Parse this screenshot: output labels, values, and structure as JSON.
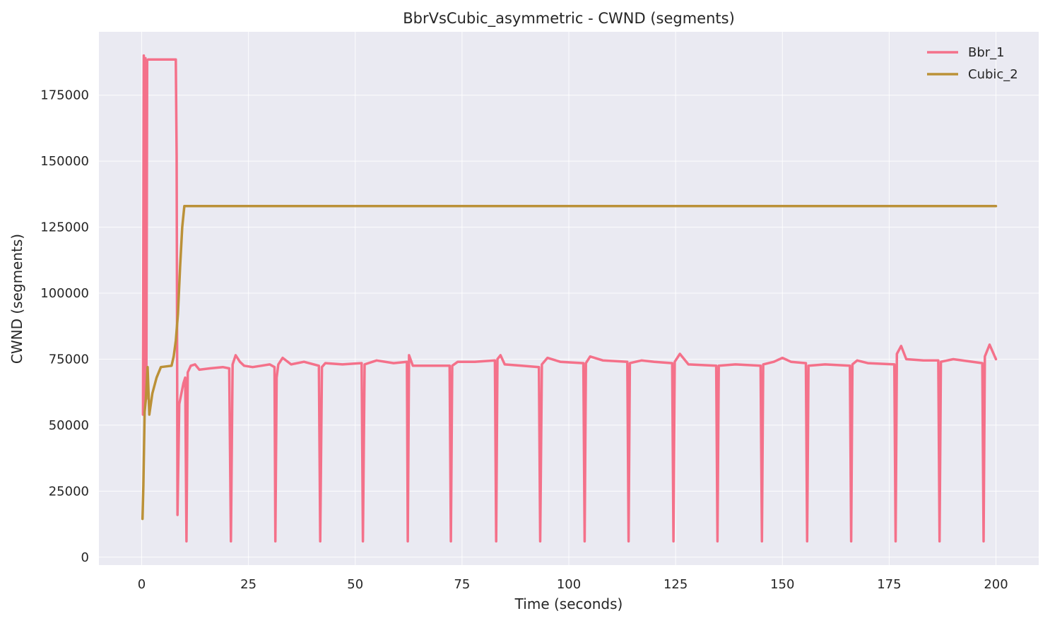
{
  "chart_data": {
    "type": "line",
    "title": "BbrVsCubic_asymmetric - CWND (segments)",
    "xlabel": "Time (seconds)",
    "ylabel": "CWND (segments)",
    "xlim": [
      -10,
      210
    ],
    "ylim": [
      -3000,
      199000
    ],
    "x_ticks": [
      0,
      25,
      50,
      75,
      100,
      125,
      150,
      175,
      200
    ],
    "y_ticks": [
      0,
      25000,
      50000,
      75000,
      100000,
      125000,
      150000,
      175000
    ],
    "grid": true,
    "legend_position": "top-right",
    "series": [
      {
        "name": "Bbr_1",
        "color": "#f4718a",
        "points": [
          [
            0.3,
            54000
          ],
          [
            0.5,
            190000
          ],
          [
            0.7,
            56000
          ],
          [
            0.9,
            189000
          ],
          [
            1.1,
            60000
          ],
          [
            1.3,
            188000
          ],
          [
            1.5,
            188500
          ],
          [
            8.0,
            188500
          ],
          [
            8.2,
            152000
          ],
          [
            8.4,
            16000
          ],
          [
            8.8,
            58000
          ],
          [
            9.3,
            62000
          ],
          [
            9.8,
            66000
          ],
          [
            10.2,
            68000
          ],
          [
            10.5,
            6000
          ],
          [
            10.8,
            70000
          ],
          [
            11.5,
            72500
          ],
          [
            12.5,
            73000
          ],
          [
            13.5,
            71000
          ],
          [
            16,
            71500
          ],
          [
            19,
            72000
          ],
          [
            20.5,
            71500
          ],
          [
            20.9,
            6000
          ],
          [
            21.3,
            73000
          ],
          [
            22,
            76500
          ],
          [
            23,
            74000
          ],
          [
            24,
            72500
          ],
          [
            26,
            72000
          ],
          [
            28,
            72500
          ],
          [
            30,
            73000
          ],
          [
            31.1,
            72000
          ],
          [
            31.3,
            6000
          ],
          [
            31.6,
            68000
          ],
          [
            32,
            73000
          ],
          [
            33,
            75500
          ],
          [
            35,
            73000
          ],
          [
            38,
            74000
          ],
          [
            41.5,
            72500
          ],
          [
            41.8,
            6000
          ],
          [
            42.2,
            72000
          ],
          [
            43,
            73500
          ],
          [
            47,
            73000
          ],
          [
            51.5,
            73500
          ],
          [
            51.8,
            6000
          ],
          [
            52.2,
            73000
          ],
          [
            55,
            74500
          ],
          [
            59,
            73500
          ],
          [
            62.1,
            74000
          ],
          [
            62.3,
            6000
          ],
          [
            62.6,
            76500
          ],
          [
            63.5,
            72500
          ],
          [
            67,
            72500
          ],
          [
            72.1,
            72500
          ],
          [
            72.4,
            6000
          ],
          [
            72.7,
            72500
          ],
          [
            74,
            74000
          ],
          [
            78,
            74000
          ],
          [
            82.7,
            74500
          ],
          [
            83.0,
            6000
          ],
          [
            83.3,
            75000
          ],
          [
            84,
            76500
          ],
          [
            85,
            73000
          ],
          [
            89,
            72500
          ],
          [
            93.0,
            72000
          ],
          [
            93.3,
            6000
          ],
          [
            93.7,
            73000
          ],
          [
            95,
            75500
          ],
          [
            98,
            74000
          ],
          [
            103.4,
            73500
          ],
          [
            103.7,
            6000
          ],
          [
            104.0,
            73500
          ],
          [
            105,
            76000
          ],
          [
            108,
            74500
          ],
          [
            113.7,
            74000
          ],
          [
            114.0,
            6000
          ],
          [
            114.3,
            73500
          ],
          [
            117,
            74500
          ],
          [
            120,
            74000
          ],
          [
            124.2,
            73500
          ],
          [
            124.5,
            6000
          ],
          [
            124.8,
            74000
          ],
          [
            126,
            77000
          ],
          [
            128,
            73000
          ],
          [
            134.5,
            72500
          ],
          [
            134.8,
            6000
          ],
          [
            135.1,
            72500
          ],
          [
            139,
            73000
          ],
          [
            144.9,
            72500
          ],
          [
            145.2,
            6000
          ],
          [
            145.5,
            73000
          ],
          [
            148,
            74000
          ],
          [
            150,
            75500
          ],
          [
            152,
            74000
          ],
          [
            155.5,
            73500
          ],
          [
            155.8,
            6000
          ],
          [
            156.1,
            72500
          ],
          [
            160,
            73000
          ],
          [
            165.8,
            72500
          ],
          [
            166.1,
            6000
          ],
          [
            166.4,
            73000
          ],
          [
            167.5,
            74500
          ],
          [
            170,
            73500
          ],
          [
            176.2,
            73000
          ],
          [
            176.5,
            6000
          ],
          [
            176.8,
            77000
          ],
          [
            177.8,
            80000
          ],
          [
            179,
            75000
          ],
          [
            183,
            74500
          ],
          [
            186.5,
            74500
          ],
          [
            186.8,
            6000
          ],
          [
            187.1,
            74000
          ],
          [
            190,
            75000
          ],
          [
            196.8,
            73500
          ],
          [
            197.1,
            6000
          ],
          [
            197.4,
            76000
          ],
          [
            198.5,
            80500
          ],
          [
            200,
            75000
          ]
        ]
      },
      {
        "name": "Cubic_2",
        "color": "#bb9138",
        "points": [
          [
            0.2,
            14500
          ],
          [
            0.4,
            27000
          ],
          [
            0.7,
            55000
          ],
          [
            1.0,
            60000
          ],
          [
            1.4,
            72000
          ],
          [
            1.8,
            54000
          ],
          [
            2.5,
            62000
          ],
          [
            3.5,
            68000
          ],
          [
            4.5,
            72000
          ],
          [
            7,
            72500
          ],
          [
            7.5,
            76000
          ],
          [
            8.0,
            82000
          ],
          [
            8.5,
            92000
          ],
          [
            9.0,
            110000
          ],
          [
            9.5,
            125000
          ],
          [
            10.0,
            133000
          ],
          [
            200,
            133000
          ]
        ]
      }
    ]
  }
}
